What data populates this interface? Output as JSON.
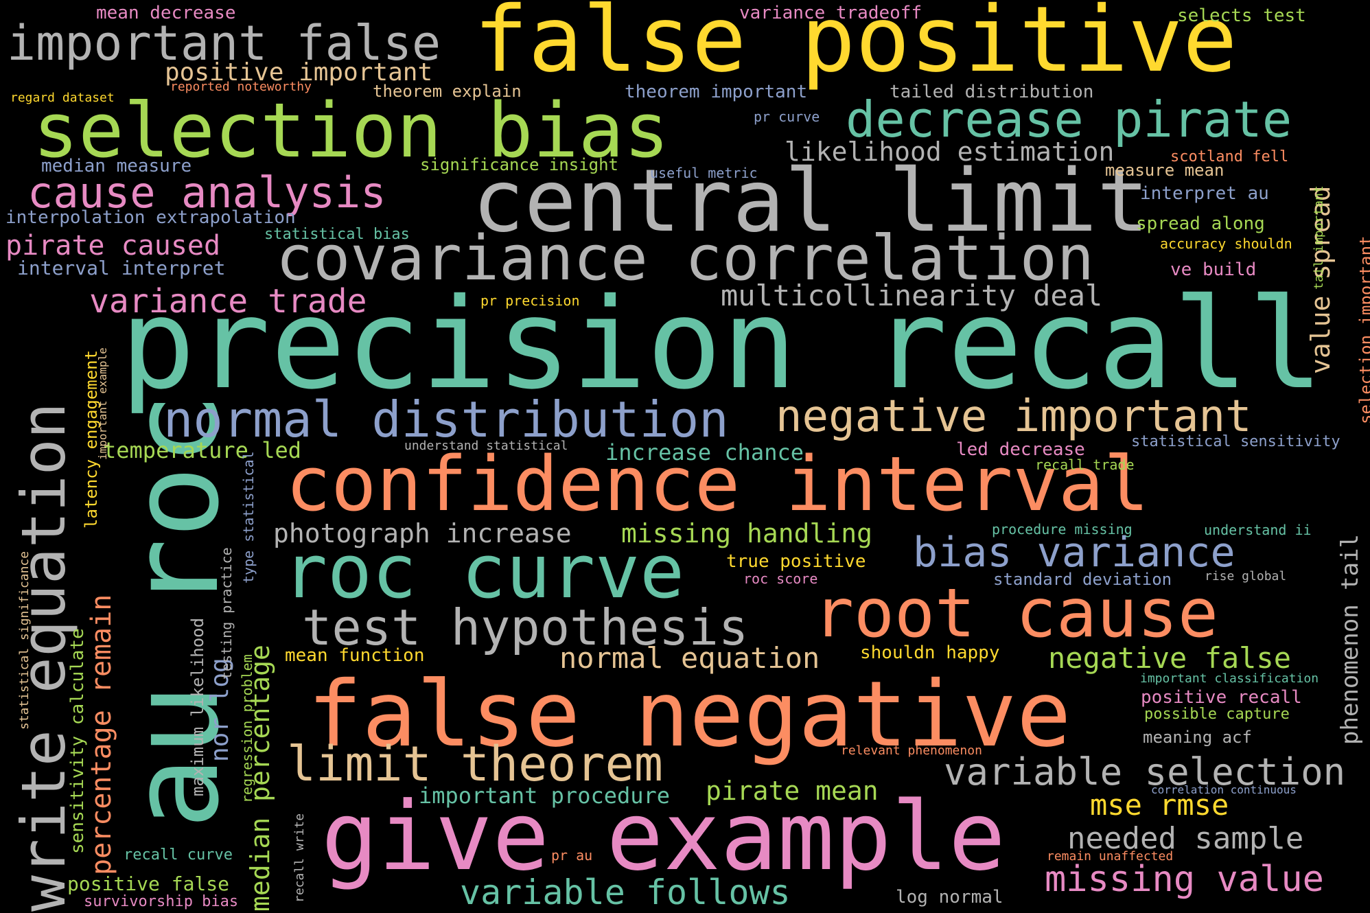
{
  "palette": {
    "teal": "#66c2a5",
    "orange": "#fc8d62",
    "blue": "#8da0cb",
    "pink": "#e78ac3",
    "green": "#a6d854",
    "yellow": "#ffd92f",
    "tan": "#e5c494",
    "gray": "#b3b3b3"
  },
  "words": [
    "false positive",
    "precision recall",
    "give example",
    "false negative",
    "au roc",
    "central limit",
    "confidence interval",
    "selection bias",
    "covariance correlation",
    "roc curve",
    "root cause",
    "write equation",
    "decrease pirate",
    "normal distribution",
    "negative important",
    "important false",
    "test hypothesis",
    "limit theorem",
    "cause analysis",
    "bias variance",
    "variable selection",
    "missing value",
    "variable follows",
    "variance trade",
    "multicollinearity deal",
    "photograph increase",
    "missing handling",
    "normal equation",
    "negative false",
    "mse rmse",
    "needed sample",
    "percentage remain",
    "median percentage",
    "likelihood estimation",
    "positive important",
    "pirate caused",
    "pirate mean",
    "temperature led",
    "increase chance",
    "important procedure",
    "value spread",
    "phenomenon tail",
    "nor log",
    "latency engagement",
    "mean decrease",
    "variance tradeoff",
    "selects test",
    "theorem explain",
    "theorem important",
    "tailed distribution",
    "median measure",
    "significance insight",
    "useful metric",
    "measure mean",
    "scotland fell",
    "interpret au",
    "interpolation extrapolation",
    "statistical bias",
    "spread along",
    "accuracy shouldn",
    "interval interpret",
    "ve build",
    "pr precision",
    "pr curve",
    "regard dataset",
    "reported noteworthy",
    "led decrease",
    "statistical sensitivity",
    "recall trade",
    "understand statistical",
    "procedure missing",
    "understand ii",
    "true positive",
    "roc score",
    "standard deviation",
    "rise global",
    "mean function",
    "shouldn happy",
    "important classification",
    "positive recall",
    "possible capture",
    "meaning acf",
    "relevant phenomenon",
    "correlation continuous",
    "remain unaffected",
    "pr au",
    "log normal",
    "recall curve",
    "positive false",
    "survivorship bias",
    "maximum likelihood",
    "regression problem",
    "testing practice",
    "type statistical",
    "recall write",
    "sensitivity calculate",
    "statistical significance",
    "important example",
    "selection important",
    "tail important"
  ]
}
